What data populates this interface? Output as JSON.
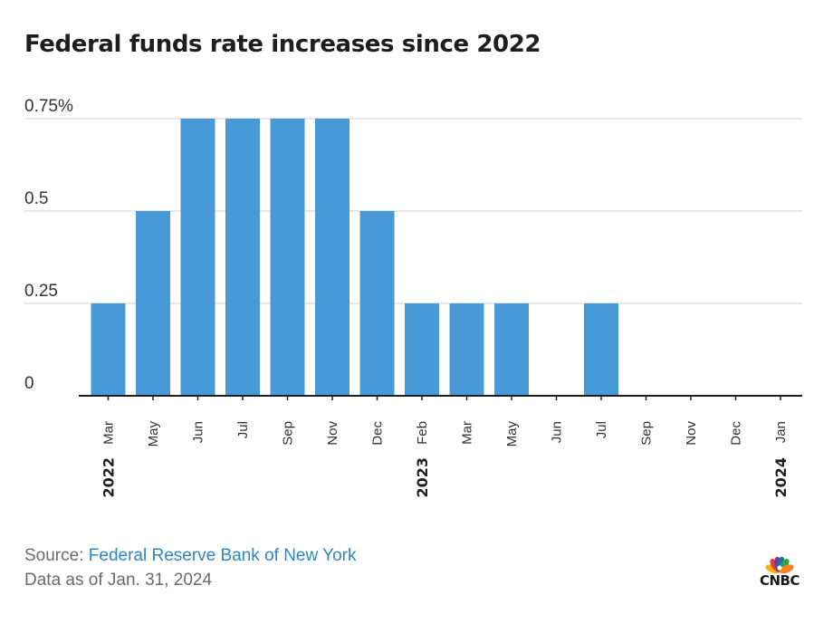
{
  "chart_data": {
    "type": "bar",
    "title": "Federal funds rate increases since 2022",
    "categories": [
      "Mar",
      "May",
      "Jun",
      "Jul",
      "Sep",
      "Nov",
      "Dec",
      "Feb",
      "Mar",
      "May",
      "Jun",
      "Jul",
      "Sep",
      "Nov",
      "Dec",
      "Jan"
    ],
    "values": [
      0.25,
      0.5,
      0.75,
      0.75,
      0.75,
      0.75,
      0.5,
      0.25,
      0.25,
      0.25,
      0,
      0.25,
      0,
      0,
      0,
      0
    ],
    "year_labels": [
      {
        "index": 0,
        "label": "2022"
      },
      {
        "index": 7,
        "label": "2023"
      },
      {
        "index": 15,
        "label": "2024"
      }
    ],
    "y_ticks": [
      {
        "value": 0,
        "label": "0"
      },
      {
        "value": 0.25,
        "label": "0.25"
      },
      {
        "value": 0.5,
        "label": "0.5"
      },
      {
        "value": 0.75,
        "label": "0.75%"
      }
    ],
    "ylim": [
      0,
      0.75
    ],
    "grid": true,
    "bar_color": "#4899d7",
    "grid_color": "#cfcfcf",
    "axis_color": "#1e1e1e"
  },
  "footer": {
    "source_prefix": "Source: ",
    "source_name": "Federal Reserve Bank of New York",
    "data_as_of": "Data as of Jan. 31, 2024"
  },
  "logo": {
    "text": "CNBC",
    "icon": "peacock-icon",
    "colors": [
      "#f6b21b",
      "#ee3b35",
      "#7b3b8f",
      "#1f6fb5",
      "#2ca24a",
      "#f58220"
    ]
  }
}
